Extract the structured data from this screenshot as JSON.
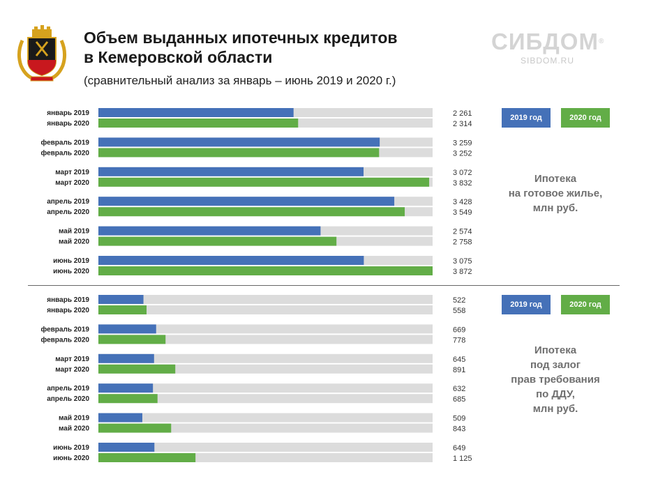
{
  "header": {
    "title_line1": "Объем выданных ипотечных  кредитов",
    "title_line2": "в Кемеровской области",
    "subtitle": "(сравнительный анализ за январь – июнь 2019 и 2020 г.)"
  },
  "logo": {
    "main": "СИБДОМ",
    "reg": "®",
    "sub": "SIBDOM.RU"
  },
  "colors": {
    "series_2019": "#4571b8",
    "series_2020": "#62ad47",
    "track": "#dcdcdc",
    "caption": "#6f6f6f"
  },
  "panels": [
    {
      "legend": {
        "label_2019": "2019 год",
        "label_2020": "2020 год"
      },
      "caption": "Ипотека\nна готовое жилье,\nмлн руб."
    },
    {
      "legend": {
        "label_2019": "2019 год",
        "label_2020": "2020 год"
      },
      "caption": "Ипотека\nпод залог\nправ требования\nпо ДДУ,\nмлн руб."
    }
  ],
  "chart_data": [
    {
      "type": "bar",
      "orientation": "horizontal",
      "series": [
        {
          "name": "2019 год",
          "color": "#4571b8",
          "labels": [
            "январь 2019",
            "февраль 2019",
            "март 2019",
            "апрель 2019",
            "май 2019",
            "июнь 2019"
          ],
          "values": [
            2261,
            3259,
            3072,
            3428,
            2574,
            3075
          ],
          "value_labels": [
            "2 261",
            "3 259",
            "3 072",
            "3 428",
            "2 574",
            "3 075"
          ]
        },
        {
          "name": "2020 год",
          "color": "#62ad47",
          "labels": [
            "январь 2020",
            "февраль 2020",
            "март 2020",
            "апрель 2020",
            "май 2020",
            "июнь 2020"
          ],
          "values": [
            2314,
            3252,
            3832,
            3549,
            2758,
            3872
          ],
          "value_labels": [
            "2 314",
            "3 252",
            "3 832",
            "3 549",
            "2 758",
            "3 872"
          ]
        }
      ],
      "xlim": [
        0,
        3872
      ]
    },
    {
      "type": "bar",
      "orientation": "horizontal",
      "series": [
        {
          "name": "2019 год",
          "color": "#4571b8",
          "labels": [
            "январь 2019",
            "февраль 2019",
            "март 2019",
            "апрель 2019",
            "май 2019",
            "июнь 2019"
          ],
          "values": [
            522,
            669,
            645,
            632,
            509,
            649
          ],
          "value_labels": [
            "522",
            "669",
            "645",
            "632",
            "509",
            "649"
          ]
        },
        {
          "name": "2020 год",
          "color": "#62ad47",
          "labels": [
            "январь 2020",
            "февраль 2020",
            "март 2020",
            "апрель 2020",
            "май 2020",
            "июнь 2020"
          ],
          "values": [
            558,
            778,
            891,
            685,
            843,
            1125
          ],
          "value_labels": [
            "558",
            "778",
            "891",
            "685",
            "843",
            "1 125"
          ]
        }
      ],
      "xlim": [
        0,
        3872
      ]
    }
  ]
}
